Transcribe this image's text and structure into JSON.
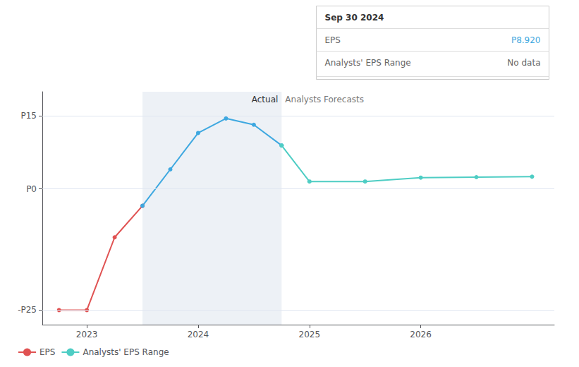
{
  "chart_data": {
    "type": "line",
    "series": [
      {
        "name": "EPS",
        "color": "#e05252",
        "marker": "circle",
        "x": [
          2022.75,
          2023.0,
          2023.25,
          2023.5
        ],
        "values": [
          -25.0,
          -25.0,
          -10.0,
          -3.5
        ]
      },
      {
        "name": "EPS",
        "color": "#3ea8e0",
        "marker": "circle",
        "x": [
          2023.5,
          2023.75,
          2024.0,
          2024.25,
          2024.5,
          2024.75
        ],
        "values": [
          -3.5,
          4.0,
          11.5,
          14.5,
          13.2,
          8.92
        ]
      },
      {
        "name": "Analysts' EPS Range",
        "color": "#4ecdc4",
        "marker": "circle",
        "x": [
          2024.75,
          2025.0,
          2025.5,
          2026.0,
          2026.5,
          2027.0
        ],
        "values": [
          8.92,
          1.5,
          1.5,
          2.3,
          2.4,
          2.5
        ]
      }
    ],
    "highlight_x": [
      2023.5,
      2024.75
    ],
    "annotations": [
      "Actual",
      "Analysts Forecasts"
    ],
    "tooltip": {
      "title": "Sep 30 2024",
      "rows": [
        {
          "label": "EPS",
          "value": "P8.920"
        },
        {
          "label": "Analysts' EPS Range",
          "value": "No data"
        }
      ]
    },
    "xlim": [
      2022.6,
      2027.2
    ],
    "xticks": [
      2023,
      2024,
      2025,
      2026
    ],
    "ylim": [
      -28,
      20
    ],
    "yticks": [
      {
        "value": -25,
        "label": "-P25"
      },
      {
        "value": 0,
        "label": "P0"
      },
      {
        "value": 15,
        "label": "P15"
      }
    ],
    "grid": true,
    "legend": "lower left"
  }
}
